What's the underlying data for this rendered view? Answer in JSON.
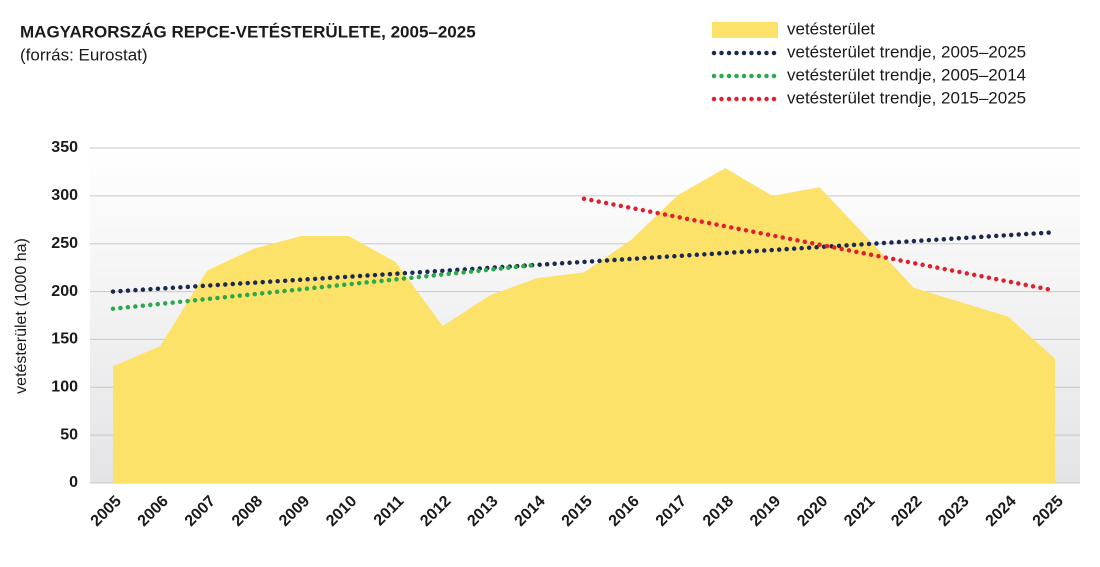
{
  "chart_data": {
    "type": "area",
    "title": "MAGYARORSZÁG REPCE-VETÉSTERÜLETE, 2005–2025",
    "subtitle": "(forrás: Eurostat)",
    "y_label": "vetésterület (1000 ha)",
    "categories": [
      "2005",
      "2006",
      "2007",
      "2008",
      "2009",
      "2010",
      "2011",
      "2012",
      "2013",
      "2014",
      "2015",
      "2016",
      "2017",
      "2018",
      "2019",
      "2020",
      "2021",
      "2022",
      "2023",
      "2024",
      "2025"
    ],
    "series": [
      {
        "name": "vetésterület",
        "color": "#fde26a",
        "style": "area",
        "values": [
          122,
          143,
          222,
          245,
          258,
          258,
          231,
          164,
          196,
          214,
          220,
          254,
          301,
          329,
          300,
          309,
          257,
          204,
          189,
          174,
          130
        ]
      },
      {
        "name": "vetésterület trendje, 2005–2025",
        "color": "#1b2a4e",
        "style": "dotted",
        "values": [
          200,
          203.1,
          206.2,
          209.3,
          212.4,
          215.5,
          218.6,
          221.7,
          224.8,
          227.9,
          231,
          234.1,
          237.2,
          240.3,
          243.4,
          246.5,
          249.6,
          252.7,
          255.8,
          258.9,
          262
        ]
      },
      {
        "name": "vetésterület trendje, 2005–2014",
        "color": "#2aa84a",
        "style": "dotted",
        "values": [
          182,
          187.1,
          192.2,
          197.3,
          202.4,
          207.6,
          212.7,
          217.8,
          222.9,
          228,
          null,
          null,
          null,
          null,
          null,
          null,
          null,
          null,
          null,
          null,
          null
        ]
      },
      {
        "name": "vetésterület trendje, 2015–2025",
        "color": "#e0202e",
        "style": "dotted",
        "values": [
          null,
          null,
          null,
          null,
          null,
          null,
          null,
          null,
          null,
          null,
          297,
          287.4,
          277.8,
          268.2,
          258.6,
          249,
          239.4,
          229.8,
          220.2,
          210.6,
          201
        ]
      }
    ],
    "ylim": [
      0,
      350
    ],
    "yticks": [
      0,
      50,
      100,
      150,
      200,
      250,
      300,
      350
    ],
    "grid": true,
    "legend": "top-right"
  }
}
